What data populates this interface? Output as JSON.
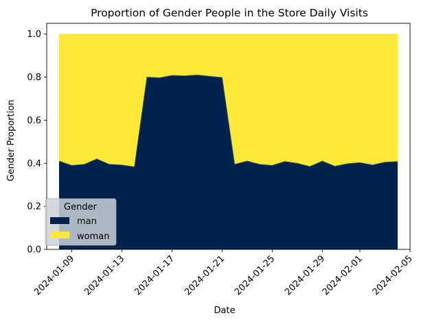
{
  "chart_data": {
    "type": "area",
    "stacked": true,
    "title": "Proportion of Gender People in the Store Daily Visits",
    "xlabel": "Date",
    "ylabel": "Gender Proportion",
    "ylim": [
      0,
      1.05
    ],
    "yticks": [
      "0.0",
      "0.2",
      "0.4",
      "0.6",
      "0.8",
      "1.0"
    ],
    "xlim": [
      "2024-01-07",
      "2024-02-05"
    ],
    "xticks": [
      "2024-01-09",
      "2024-01-13",
      "2024-01-17",
      "2024-01-21",
      "2024-01-25",
      "2024-01-29",
      "2024-02-01",
      "2024-02-05"
    ],
    "x": [
      "2024-01-08",
      "2024-01-09",
      "2024-01-10",
      "2024-01-11",
      "2024-01-12",
      "2024-01-13",
      "2024-01-14",
      "2024-01-15",
      "2024-01-16",
      "2024-01-17",
      "2024-01-18",
      "2024-01-19",
      "2024-01-20",
      "2024-01-21",
      "2024-01-22",
      "2024-01-23",
      "2024-01-24",
      "2024-01-25",
      "2024-01-26",
      "2024-01-27",
      "2024-01-28",
      "2024-01-29",
      "2024-01-30",
      "2024-01-31",
      "2024-02-01",
      "2024-02-02",
      "2024-02-03",
      "2024-02-04"
    ],
    "series": [
      {
        "name": "man",
        "color": "#00224e",
        "values": [
          0.41,
          0.39,
          0.395,
          0.42,
          0.395,
          0.392,
          0.383,
          0.8,
          0.797,
          0.808,
          0.806,
          0.81,
          0.804,
          0.798,
          0.395,
          0.41,
          0.395,
          0.39,
          0.408,
          0.4,
          0.385,
          0.41,
          0.386,
          0.398,
          0.403,
          0.392,
          0.405,
          0.408
        ]
      },
      {
        "name": "woman",
        "color": "#fee838",
        "values": [
          0.59,
          0.61,
          0.605,
          0.58,
          0.605,
          0.608,
          0.617,
          0.2,
          0.203,
          0.192,
          0.194,
          0.19,
          0.196,
          0.202,
          0.605,
          0.59,
          0.605,
          0.61,
          0.592,
          0.6,
          0.615,
          0.59,
          0.614,
          0.602,
          0.597,
          0.608,
          0.595,
          0.592
        ]
      }
    ],
    "legend": {
      "title": "Gender",
      "placement": "lower-left"
    },
    "grid": false
  }
}
